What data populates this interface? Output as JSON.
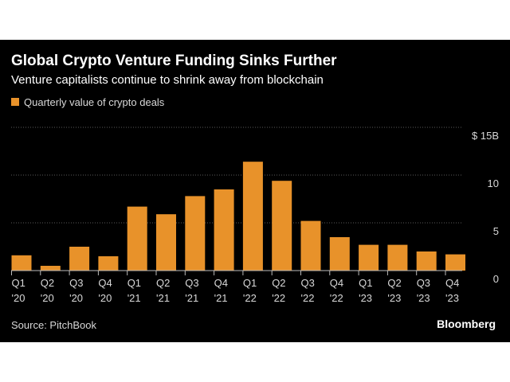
{
  "header": {
    "title": "Global Crypto Venture Funding Sinks Further",
    "subtitle": "Venture capitalists continue to shrink away from blockchain"
  },
  "legend": {
    "label": "Quarterly value of crypto deals",
    "color": "#e8922a"
  },
  "footer": {
    "source": "Source: PitchBook",
    "brand": "Bloomberg"
  },
  "colors": {
    "bar": "#e8922a",
    "background": "#000000",
    "grid": "#5a5a5a",
    "text": "#d8d8d8"
  },
  "chart_data": {
    "type": "bar",
    "categories": [
      "Q1 '20",
      "Q2 '20",
      "Q3 '20",
      "Q4 '20",
      "Q1 '21",
      "Q2 '21",
      "Q3 '21",
      "Q4 '21",
      "Q1 '22",
      "Q2 '22",
      "Q3 '22",
      "Q4 '22",
      "Q1 '23",
      "Q2 '23",
      "Q3 '23",
      "Q4 '23"
    ],
    "category_lines": [
      [
        "Q1",
        "'20"
      ],
      [
        "Q2",
        "'20"
      ],
      [
        "Q3",
        "'20"
      ],
      [
        "Q4",
        "'20"
      ],
      [
        "Q1",
        "'21"
      ],
      [
        "Q2",
        "'21"
      ],
      [
        "Q3",
        "'21"
      ],
      [
        "Q4",
        "'21"
      ],
      [
        "Q1",
        "'22"
      ],
      [
        "Q2",
        "'22"
      ],
      [
        "Q3",
        "'22"
      ],
      [
        "Q4",
        "'22"
      ],
      [
        "Q1",
        "'23"
      ],
      [
        "Q2",
        "'23"
      ],
      [
        "Q3",
        "'23"
      ],
      [
        "Q4",
        "'23"
      ]
    ],
    "values": [
      1.6,
      0.5,
      2.5,
      1.5,
      6.7,
      5.9,
      7.8,
      8.5,
      11.4,
      9.4,
      5.2,
      3.5,
      2.7,
      2.7,
      2.0,
      1.7
    ],
    "series_name": "Quarterly value of crypto deals",
    "ylim": [
      0,
      15
    ],
    "yticks": [
      0,
      5,
      10,
      15
    ],
    "ytick_labels": [
      "0",
      "5",
      "10",
      "$ 15B"
    ],
    "grid": true,
    "legend_position": "top-left"
  }
}
